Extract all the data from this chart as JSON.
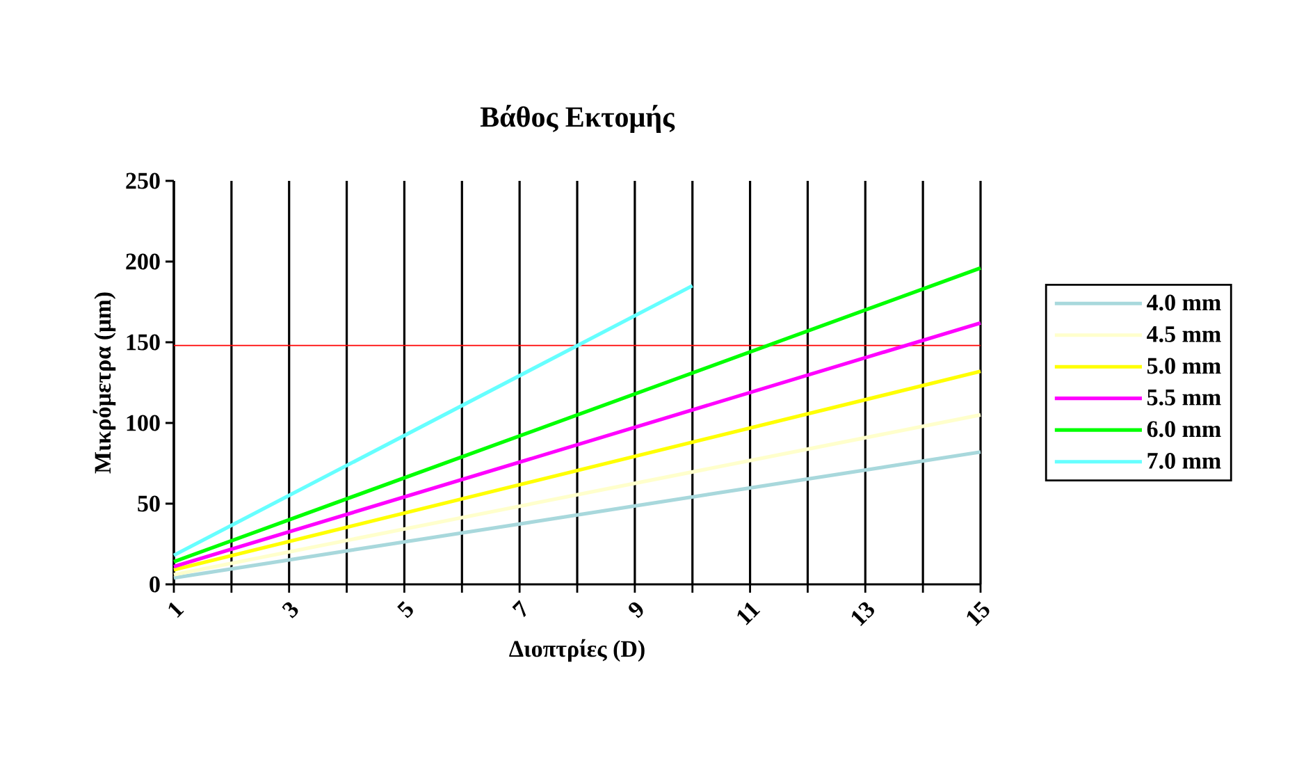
{
  "chart_data": {
    "type": "line",
    "title": "Βάθος Εκτομής",
    "xlabel": "Διοπτρίες (D)",
    "ylabel": "Μικρόμετρα (μm)",
    "xlim": [
      1,
      15
    ],
    "ylim": [
      0,
      250
    ],
    "xticks": [
      1,
      {
        "value": 2,
        "label": null
      },
      3,
      {
        "value": 4,
        "label": null
      },
      5,
      {
        "value": 6,
        "label": null
      },
      7,
      {
        "value": 8,
        "label": null
      },
      9,
      {
        "value": 10,
        "label": null
      },
      11,
      {
        "value": 12,
        "label": null
      },
      13,
      {
        "value": 14,
        "label": null
      },
      15
    ],
    "yticks": [
      0,
      50,
      100,
      150,
      200,
      250
    ],
    "grid": "x",
    "legend": "right",
    "marker": "none",
    "line_style": "solid",
    "ref_lines": [
      {
        "axis": "y",
        "value": 148,
        "color": "#ff0000"
      }
    ],
    "series": [
      {
        "name": "4.0 mm",
        "color": "#a8d8dc",
        "x": [
          1,
          15
        ],
        "values": [
          4,
          82
        ]
      },
      {
        "name": "4.5 mm",
        "color": "#ffffcc",
        "x": [
          1,
          15
        ],
        "values": [
          6,
          105
        ]
      },
      {
        "name": "5.0 mm",
        "color": "#ffff00",
        "x": [
          1,
          15
        ],
        "values": [
          9,
          132
        ]
      },
      {
        "name": "5.5 mm",
        "color": "#ff00ff",
        "x": [
          1,
          15
        ],
        "values": [
          11,
          162
        ]
      },
      {
        "name": "6.0 mm",
        "color": "#00ff00",
        "x": [
          1,
          15
        ],
        "values": [
          14,
          196
        ]
      },
      {
        "name": "7.0 mm",
        "color": "#66ffff",
        "x": [
          1,
          10
        ],
        "values": [
          18,
          185
        ]
      }
    ]
  }
}
